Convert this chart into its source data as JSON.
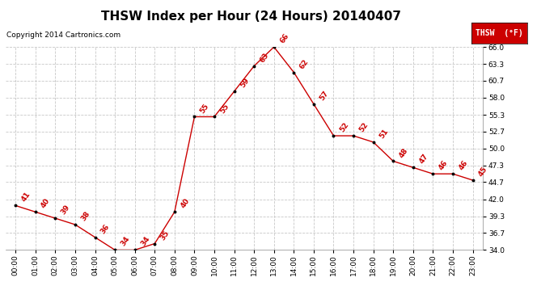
{
  "title": "THSW Index per Hour (24 Hours) 20140407",
  "copyright": "Copyright 2014 Cartronics.com",
  "legend_label": "THSW  (°F)",
  "hours": [
    0,
    1,
    2,
    3,
    4,
    5,
    6,
    7,
    8,
    9,
    10,
    11,
    12,
    13,
    14,
    15,
    16,
    17,
    18,
    19,
    20,
    21,
    22,
    23
  ],
  "values": [
    41,
    40,
    39,
    38,
    36,
    34,
    34,
    35,
    40,
    55,
    55,
    59,
    63,
    66,
    62,
    57,
    52,
    52,
    51,
    48,
    47,
    46,
    46,
    45
  ],
  "hour_labels": [
    "00:00",
    "01:00",
    "02:00",
    "03:00",
    "04:00",
    "05:00",
    "06:00",
    "07:00",
    "08:00",
    "09:00",
    "10:00",
    "11:00",
    "12:00",
    "13:00",
    "14:00",
    "15:00",
    "16:00",
    "17:00",
    "18:00",
    "19:00",
    "20:00",
    "21:00",
    "22:00",
    "23:00"
  ],
  "line_color": "#cc0000",
  "marker_color": "#000000",
  "label_color": "#cc0000",
  "bg_color": "#ffffff",
  "grid_color": "#c8c8c8",
  "ylim_min": 34.0,
  "ylim_max": 66.0,
  "yticks": [
    34.0,
    36.7,
    39.3,
    42.0,
    44.7,
    47.3,
    50.0,
    52.7,
    55.3,
    58.0,
    60.7,
    63.3,
    66.0
  ],
  "title_fontsize": 11,
  "label_fontsize": 6.5,
  "tick_fontsize": 6.5,
  "copyright_fontsize": 6.5,
  "legend_box_color": "#cc0000",
  "legend_text_color": "#ffffff",
  "legend_fontsize": 7
}
